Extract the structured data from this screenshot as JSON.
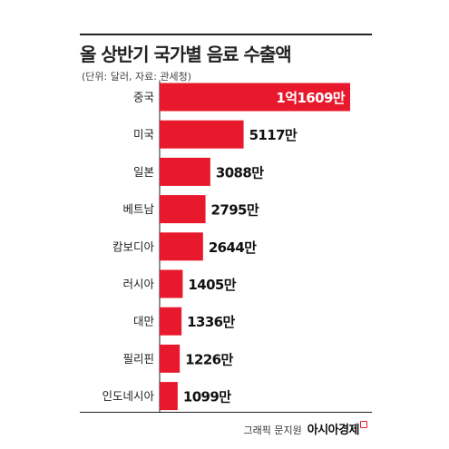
{
  "header": {
    "title": "올 상반기 국가별 음료 수출액",
    "subtitle": "(단위: 달러, 자료: 관세청)"
  },
  "chart_data": {
    "type": "bar",
    "orientation": "horizontal",
    "title": "올 상반기 국가별 음료 수출액",
    "subtitle": "(단위: 달러, 자료: 관세청)",
    "categories": [
      "중국",
      "미국",
      "일본",
      "베트남",
      "캄보디아",
      "러시아",
      "대만",
      "필리핀",
      "인도네시아"
    ],
    "values": [
      11609,
      5117,
      3088,
      2795,
      2644,
      1405,
      1336,
      1226,
      1099
    ],
    "value_unit": "만 달러",
    "value_labels": [
      "1억1609만",
      "5117만",
      "3088만",
      "2795만",
      "2644만",
      "1405만",
      "1336만",
      "1226만",
      "1099만"
    ],
    "xlim": [
      0,
      11609
    ],
    "grid": false,
    "legend": "none",
    "bar_color": "#e8192c",
    "highlight_label_color": "#ffffff"
  },
  "footer": {
    "credit_prefix": "그래픽 문지원",
    "credit_brand": "아시아경제",
    "brand_icon": "brand-mark-icon"
  }
}
